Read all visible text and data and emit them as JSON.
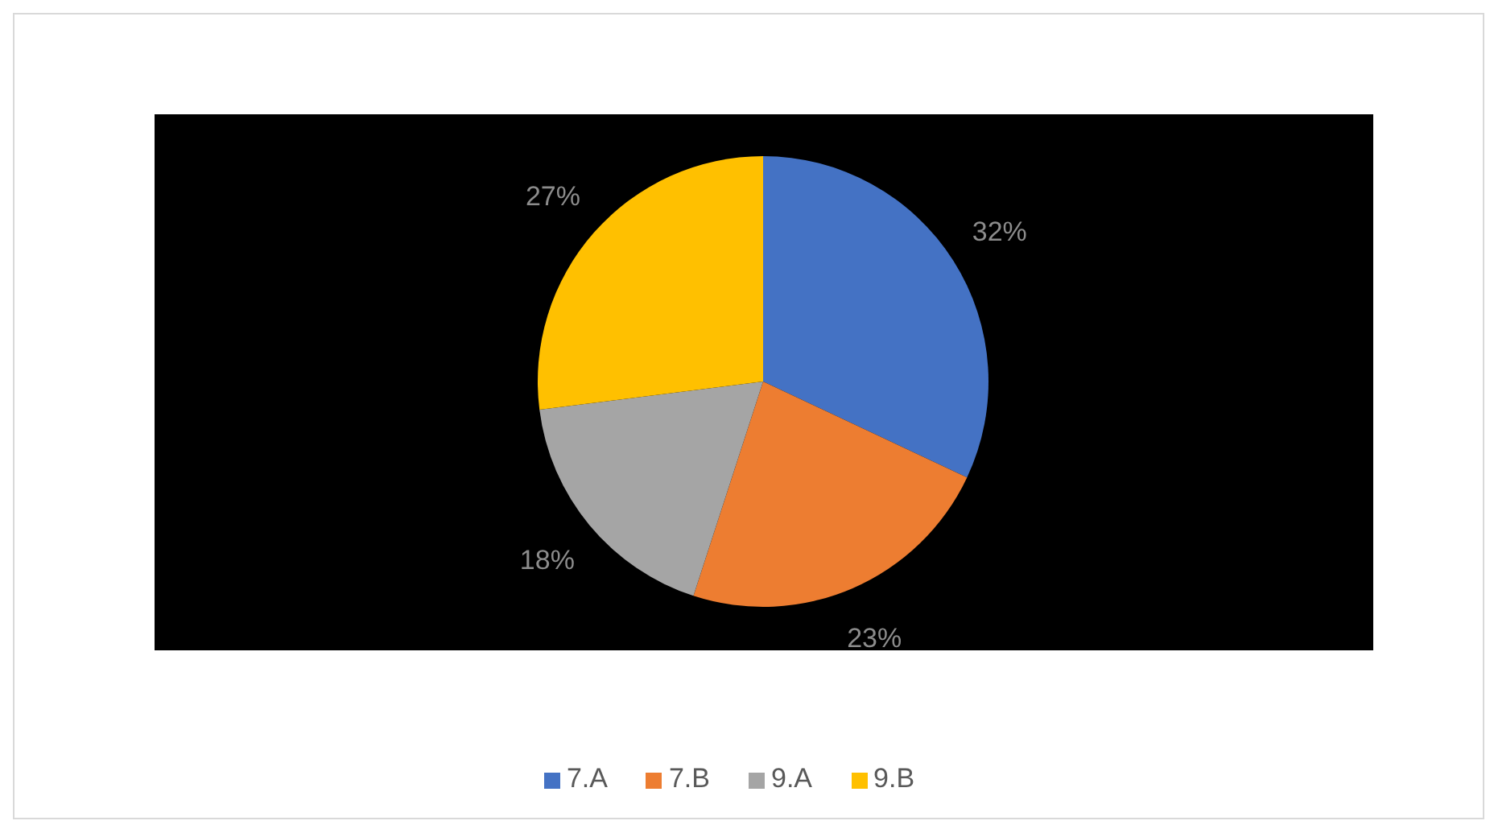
{
  "chart_data": {
    "type": "pie",
    "categories": [
      "7.A",
      "7.B",
      "9.A",
      "9.B"
    ],
    "values": [
      32,
      23,
      18,
      27
    ],
    "colors": [
      "#4472c4",
      "#ed7d31",
      "#a5a5a5",
      "#ffc000"
    ],
    "value_labels": [
      "32%",
      "23%",
      "18%",
      "27%"
    ],
    "legend": "bottom"
  }
}
